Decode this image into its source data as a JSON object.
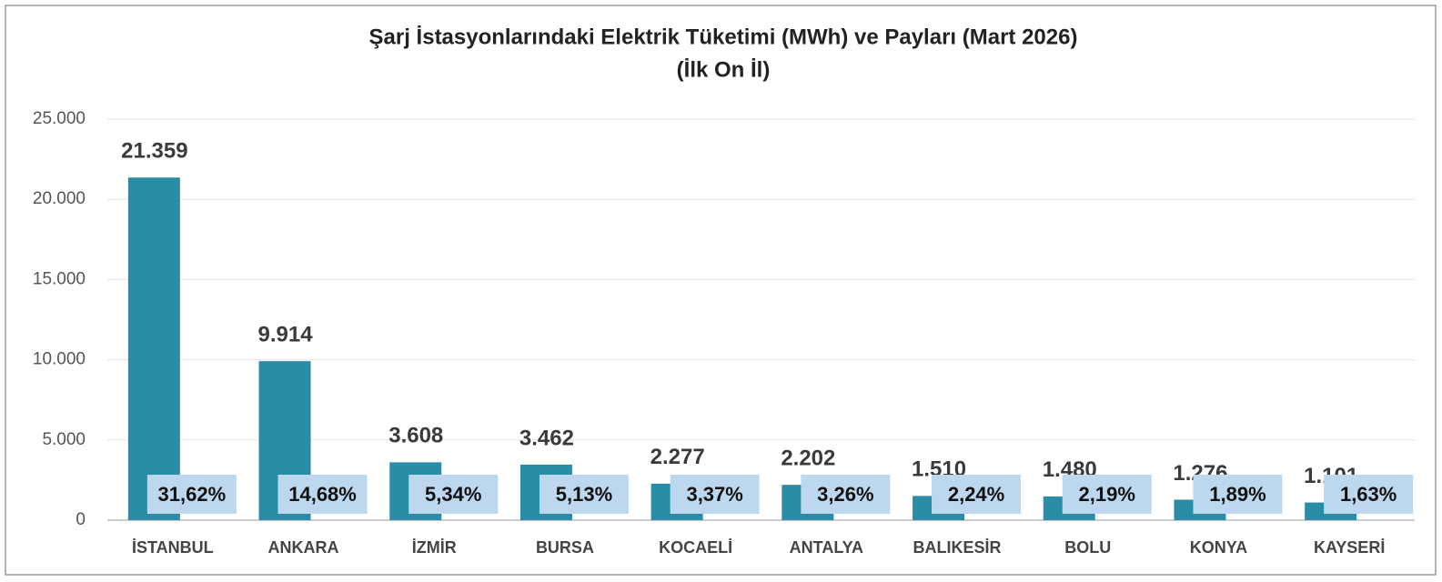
{
  "chart_data": {
    "type": "bar",
    "title": "Şarj İstasyonlarındaki Elektrik Tüketimi (MWh) ve Payları (Mart 2026)",
    "subtitle": "(İlk On İl)",
    "categories": [
      "İSTANBUL",
      "ANKARA",
      "İZMİR",
      "BURSA",
      "KOCAELİ",
      "ANTALYA",
      "BALIKESİR",
      "BOLU",
      "KONYA",
      "KAYSERİ"
    ],
    "values": [
      21359,
      9914,
      3608,
      3462,
      2277,
      2202,
      1510,
      1480,
      1276,
      1101
    ],
    "value_labels": [
      "21.359",
      "9.914",
      "3.608",
      "3.462",
      "2.277",
      "2.202",
      "1.510",
      "1.480",
      "1.276",
      "1.101"
    ],
    "shares": [
      31.62,
      14.68,
      5.34,
      5.13,
      3.37,
      3.26,
      2.24,
      2.19,
      1.89,
      1.63
    ],
    "share_labels": [
      "31,62%",
      "14,68%",
      "5,34%",
      "5,13%",
      "3,37%",
      "3,26%",
      "2,24%",
      "2,19%",
      "1,89%",
      "1,63%"
    ],
    "color": "#2a8ca6",
    "share_box_color": "#bdd7ee",
    "ylim": [
      0,
      25000
    ],
    "yticks": [
      0,
      {
        "value": 5000,
        "label": "5.000"
      },
      {
        "value": 10000,
        "label": "10.000"
      },
      {
        "value": 15000,
        "label": "15.000"
      },
      {
        "value": 20000,
        "label": "20.000"
      },
      {
        "value": 25000,
        "label": "25.000"
      }
    ],
    "grid": true
  }
}
